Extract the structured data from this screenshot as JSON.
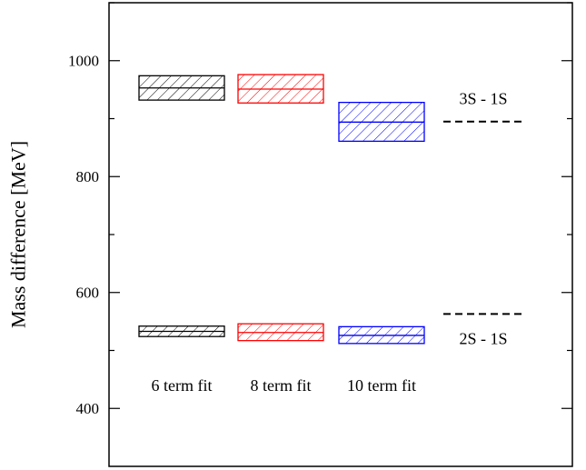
{
  "chart_data": {
    "type": "box",
    "title": "",
    "xlabel": "",
    "ylabel": "Mass difference [MeV]",
    "ylim": [
      300,
      1100
    ],
    "yticks": [
      400,
      600,
      800,
      1000
    ],
    "categories": [
      "6 term fit",
      "8 term fit",
      "10 term fit"
    ],
    "series": [
      {
        "name": "3S - 1S",
        "colors": [
          "#000000",
          "#ff0000",
          "#0000ff"
        ],
        "bands": [
          {
            "low": 932,
            "center": 953,
            "high": 974
          },
          {
            "low": 927,
            "center": 951,
            "high": 976
          },
          {
            "low": 861,
            "center": 894,
            "high": 928
          }
        ]
      },
      {
        "name": "2S - 1S",
        "colors": [
          "#000000",
          "#ff0000",
          "#0000ff"
        ],
        "bands": [
          {
            "low": 524,
            "center": 533,
            "high": 542
          },
          {
            "low": 517,
            "center": 531,
            "high": 546
          },
          {
            "low": 512,
            "center": 526,
            "high": 541
          }
        ]
      }
    ],
    "reference_lines": [
      {
        "label": "3S - 1S",
        "value": 895
      },
      {
        "label": "2S - 1S",
        "value": 563
      }
    ]
  }
}
